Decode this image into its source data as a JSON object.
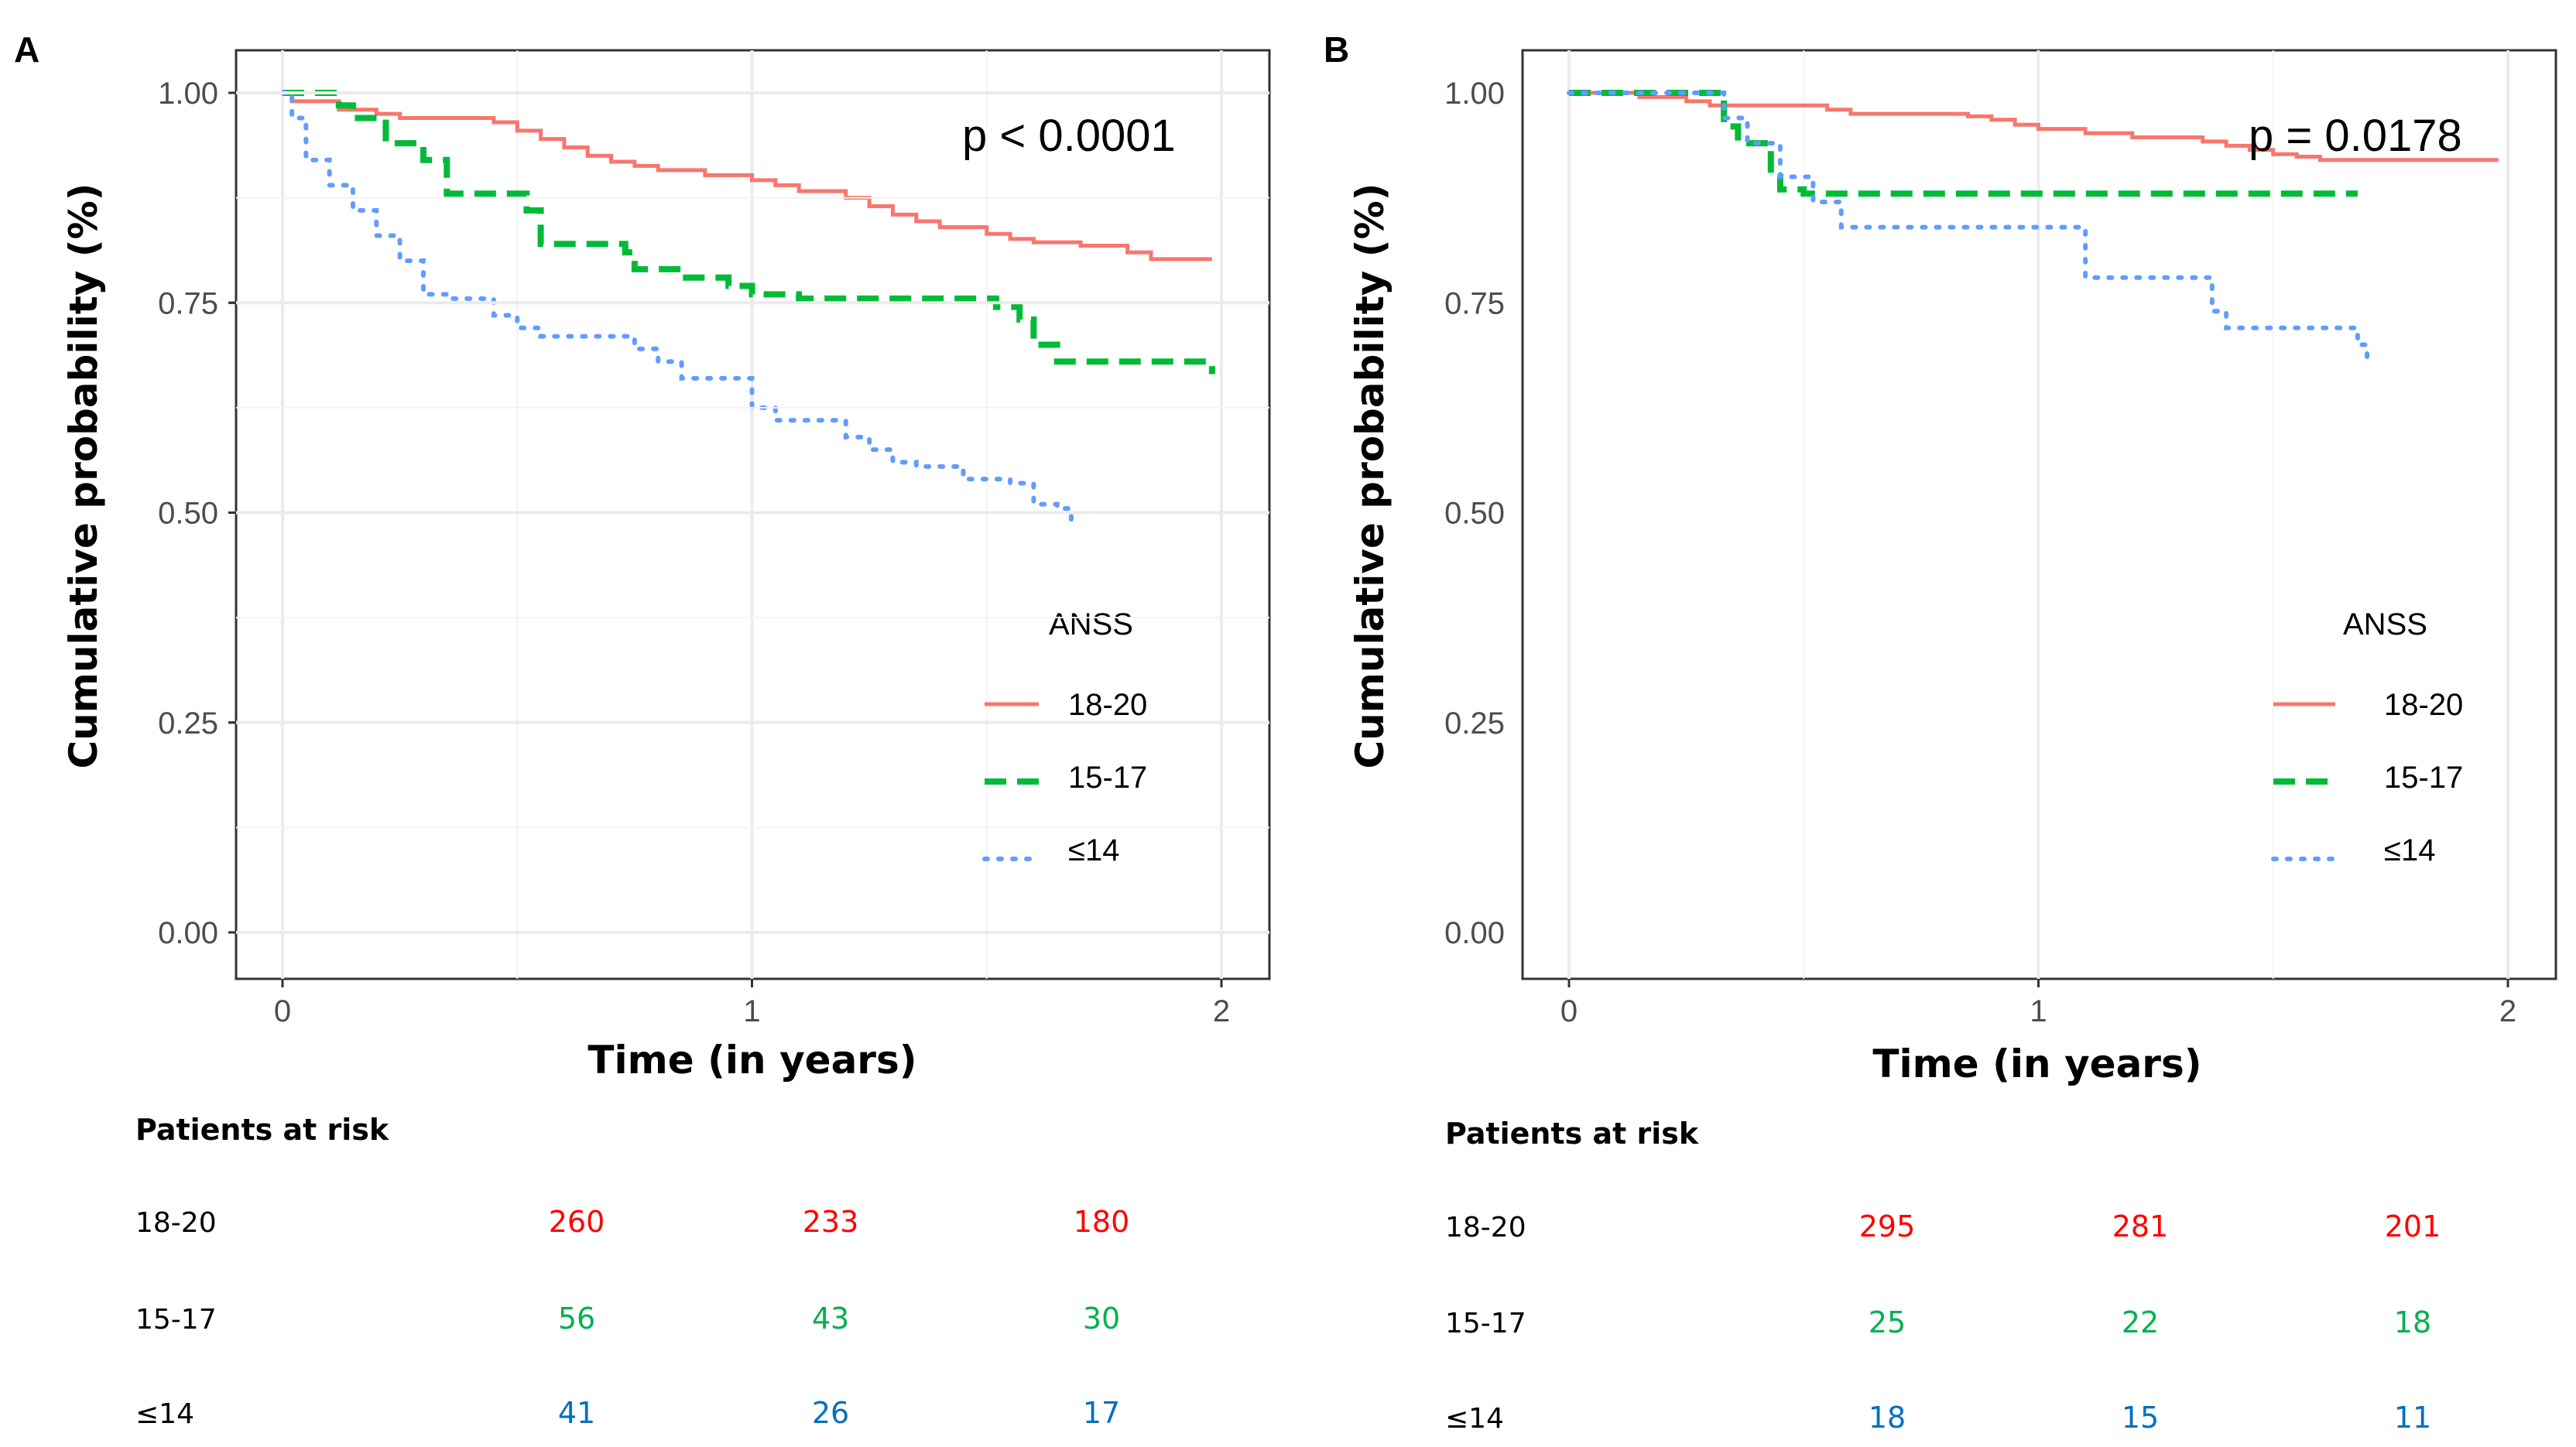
{
  "colors": {
    "s18_20": "#F8766D",
    "s15_17": "#00BA38",
    "s14": "#619CFF",
    "risk_18_20": "#FF0000",
    "risk_15_17": "#00B050",
    "risk_14": "#0070C0",
    "grid": "#EBEBEB",
    "frame": "#333333"
  },
  "chart_data": [
    {
      "panel": "A",
      "type": "line",
      "subtype": "kaplan-meier step",
      "xlabel": "Time (in years)",
      "ylabel": "Cumulative probability (%)",
      "xlim": [
        0,
        2
      ],
      "ylim": [
        0,
        1
      ],
      "xticks": [
        "0",
        "1",
        "2"
      ],
      "yticks": [
        "0.00",
        "0.25",
        "0.50",
        "0.75",
        "1.00"
      ],
      "annotation": "p < 0.0001",
      "legend": {
        "title": "ANSS",
        "position": "right",
        "entries": [
          "18-20",
          "15-17",
          "≤14"
        ]
      },
      "series": [
        {
          "name": "18-20",
          "style": "solid",
          "x": [
            0,
            0.02,
            0.12,
            0.2,
            0.25,
            0.45,
            0.5,
            0.55,
            0.6,
            0.65,
            0.7,
            0.75,
            0.8,
            0.9,
            1.0,
            1.05,
            1.1,
            1.2,
            1.25,
            1.3,
            1.35,
            1.4,
            1.5,
            1.55,
            1.6,
            1.7,
            1.8,
            1.85,
            1.98
          ],
          "y": [
            1.0,
            0.99,
            0.98,
            0.975,
            0.97,
            0.965,
            0.955,
            0.945,
            0.935,
            0.925,
            0.918,
            0.913,
            0.908,
            0.902,
            0.896,
            0.89,
            0.883,
            0.875,
            0.865,
            0.855,
            0.847,
            0.84,
            0.832,
            0.826,
            0.822,
            0.818,
            0.81,
            0.802,
            0.802
          ]
        },
        {
          "name": "15-17",
          "style": "dashed",
          "x": [
            0,
            0.12,
            0.15,
            0.22,
            0.3,
            0.35,
            0.52,
            0.55,
            0.73,
            0.75,
            0.85,
            0.95,
            1.0,
            1.1,
            1.45,
            1.52,
            1.57,
            1.6,
            1.65,
            1.95,
            1.98
          ],
          "y": [
            1.0,
            0.985,
            0.97,
            0.94,
            0.92,
            0.88,
            0.86,
            0.82,
            0.81,
            0.79,
            0.78,
            0.77,
            0.76,
            0.755,
            0.755,
            0.745,
            0.73,
            0.7,
            0.68,
            0.68,
            0.665
          ]
        },
        {
          "name": "≤14",
          "style": "dotted",
          "x": [
            0,
            0.02,
            0.05,
            0.1,
            0.15,
            0.2,
            0.25,
            0.3,
            0.35,
            0.45,
            0.5,
            0.55,
            0.75,
            0.8,
            0.85,
            1.0,
            1.05,
            1.2,
            1.25,
            1.3,
            1.35,
            1.45,
            1.55,
            1.6,
            1.65,
            1.68
          ],
          "y": [
            1.0,
            0.97,
            0.92,
            0.89,
            0.86,
            0.83,
            0.8,
            0.76,
            0.755,
            0.735,
            0.72,
            0.71,
            0.695,
            0.68,
            0.66,
            0.625,
            0.61,
            0.59,
            0.575,
            0.56,
            0.555,
            0.54,
            0.535,
            0.51,
            0.505,
            0.485
          ]
        }
      ]
    },
    {
      "panel": "B",
      "type": "line",
      "subtype": "kaplan-meier step",
      "xlabel": "Time (in years)",
      "ylabel": "Cumulative probability (%)",
      "xlim": [
        0,
        2
      ],
      "ylim": [
        0,
        1
      ],
      "xticks": [
        "0",
        "1",
        "2"
      ],
      "yticks": [
        "0.00",
        "0.25",
        "0.50",
        "0.75",
        "1.00"
      ],
      "annotation": "p = 0.0178",
      "legend": {
        "title": "ANSS",
        "position": "right",
        "entries": [
          "18-20",
          "15-17",
          "≤14"
        ]
      },
      "series": [
        {
          "name": "18-20",
          "style": "solid",
          "x": [
            0,
            0.15,
            0.25,
            0.3,
            0.55,
            0.6,
            0.85,
            0.9,
            0.95,
            1.0,
            1.1,
            1.2,
            1.35,
            1.4,
            1.45,
            1.5,
            1.55,
            1.6,
            1.98
          ],
          "y": [
            1.0,
            0.995,
            0.99,
            0.985,
            0.98,
            0.975,
            0.972,
            0.968,
            0.962,
            0.957,
            0.952,
            0.947,
            0.942,
            0.937,
            0.932,
            0.927,
            0.924,
            0.92,
            0.92
          ]
        },
        {
          "name": "15-17",
          "style": "dashed",
          "x": [
            0,
            0.33,
            0.36,
            0.43,
            0.45,
            0.5,
            1.68
          ],
          "y": [
            1.0,
            0.96,
            0.94,
            0.9,
            0.885,
            0.88,
            0.88
          ]
        },
        {
          "name": "≤14",
          "style": "dotted",
          "x": [
            0,
            0.33,
            0.38,
            0.45,
            0.52,
            0.58,
            1.05,
            1.1,
            1.3,
            1.37,
            1.4,
            1.65,
            1.68,
            1.7
          ],
          "y": [
            1.0,
            0.97,
            0.94,
            0.9,
            0.87,
            0.84,
            0.84,
            0.78,
            0.78,
            0.74,
            0.72,
            0.72,
            0.7,
            0.68
          ]
        }
      ]
    }
  ],
  "risk_tables": [
    {
      "title": "Patients at risk",
      "rows": [
        {
          "label": "18-20",
          "values": [
            "260",
            "233",
            "180"
          ]
        },
        {
          "label": "15-17",
          "values": [
            "56",
            "43",
            "30"
          ]
        },
        {
          "label": "≤14",
          "values": [
            "41",
            "26",
            "17"
          ]
        }
      ]
    },
    {
      "title": "Patients at risk",
      "rows": [
        {
          "label": "18-20",
          "values": [
            "295",
            "281",
            "201"
          ]
        },
        {
          "label": "15-17",
          "values": [
            "25",
            "22",
            "18"
          ]
        },
        {
          "label": "≤14",
          "values": [
            "18",
            "15",
            "11"
          ]
        }
      ]
    }
  ]
}
